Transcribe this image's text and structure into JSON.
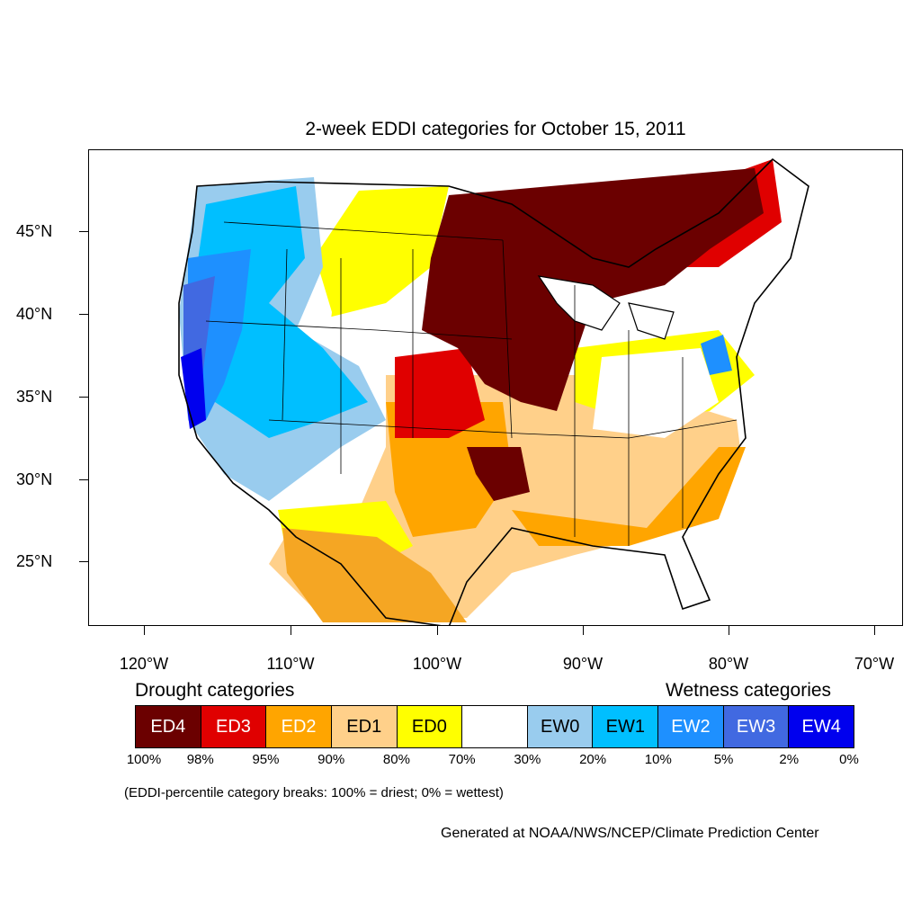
{
  "title": "2-week EDDI categories for October 15, 2011",
  "lat_labels": [
    "45°N",
    "40°N",
    "35°N",
    "30°N",
    "25°N"
  ],
  "lon_labels": [
    "120°W",
    "110°W",
    "100°W",
    "90°W",
    "80°W",
    "70°W"
  ],
  "legend": {
    "drought_title": "Drought categories",
    "wetness_title": "Wetness categories",
    "categories": [
      {
        "label": "ED4",
        "color": "#6b0000",
        "text_color": "#ffffff"
      },
      {
        "label": "ED3",
        "color": "#e00000",
        "text_color": "#ffffff"
      },
      {
        "label": "ED2",
        "color": "#ffa500",
        "text_color": "#ffffff"
      },
      {
        "label": "ED1",
        "color": "#ffd08a",
        "text_color": "#000000"
      },
      {
        "label": "ED0",
        "color": "#ffff00",
        "text_color": "#000000"
      },
      {
        "label": "",
        "color": "#ffffff",
        "text_color": "#000000"
      },
      {
        "label": "EW0",
        "color": "#99ccee",
        "text_color": "#000000"
      },
      {
        "label": "EW1",
        "color": "#00bfff",
        "text_color": "#000000"
      },
      {
        "label": "EW2",
        "color": "#1e90ff",
        "text_color": "#ffffff"
      },
      {
        "label": "EW3",
        "color": "#4169e1",
        "text_color": "#ffffff"
      },
      {
        "label": "EW4",
        "color": "#0000ee",
        "text_color": "#ffffff"
      }
    ],
    "percentiles": [
      "100%",
      "98%",
      "95%",
      "90%",
      "80%",
      "70%",
      "30%",
      "20%",
      "10%",
      "5%",
      "2%",
      "0%"
    ]
  },
  "footnote": "(EDDI-percentile category breaks: 100% = driest; 0% = wettest)",
  "credit": "Generated at NOAA/NWS/NCEP/Climate Prediction Center"
}
